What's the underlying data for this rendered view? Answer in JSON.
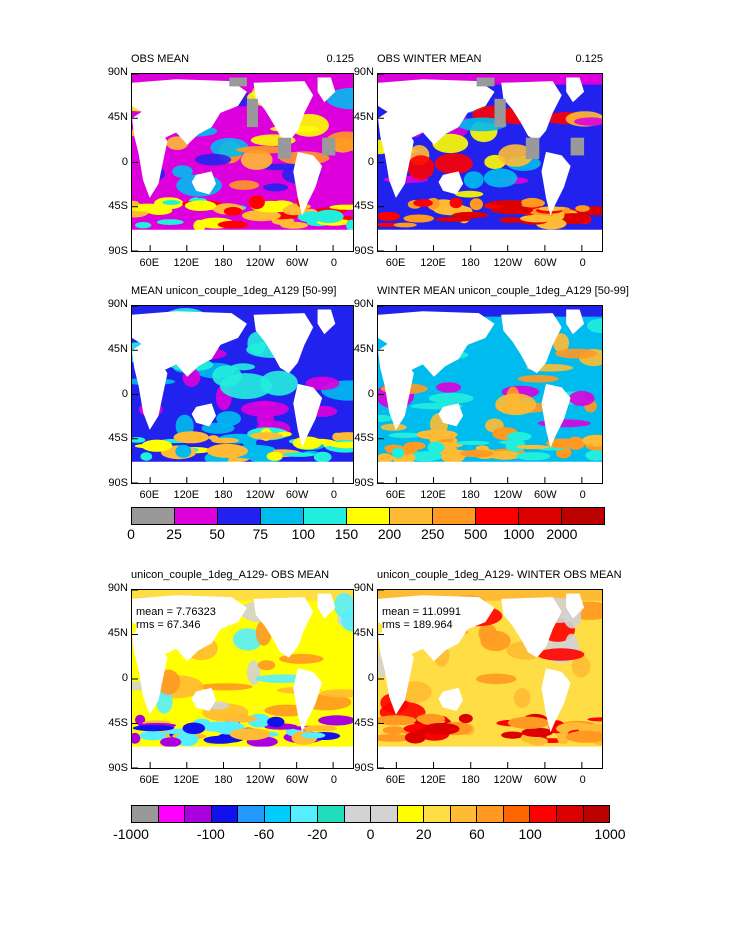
{
  "panels": [
    {
      "id": "p1",
      "title": "OBS MEAN",
      "value": "0.125",
      "field": "obs_mean"
    },
    {
      "id": "p2",
      "title": "OBS WINTER MEAN",
      "value": "0.125",
      "field": "obs_winter"
    },
    {
      "id": "p3",
      "title": "MEAN unicon_couple_1deg_A129 [50-99]",
      "value": "",
      "field": "model_mean"
    },
    {
      "id": "p4",
      "title": "WINTER MEAN unicon_couple_1deg_A129 [50-99]",
      "value": "",
      "field": "model_winter"
    },
    {
      "id": "p5",
      "title": "unicon_couple_1deg_A129- OBS MEAN",
      "value": "",
      "field": "diff_mean",
      "mean": "mean = 7.76323",
      "rms": "rms = 67.346"
    },
    {
      "id": "p6",
      "title": "unicon_couple_1deg_A129- WINTER OBS MEAN",
      "value": "",
      "field": "diff_winter",
      "mean": "mean = 11.0991",
      "rms": "rms = 189.964"
    }
  ],
  "y_ticks": [
    "90N",
    "45N",
    "0",
    "45S",
    "90S"
  ],
  "x_ticks": [
    "60E",
    "120E",
    "180",
    "120W",
    "60W",
    "0"
  ],
  "colorbar1": {
    "colors": [
      "#999999",
      "#dd00dd",
      "#2222ee",
      "#00bbee",
      "#22eedd",
      "#ffff00",
      "#ffbb33",
      "#ff9922",
      "#ff0000",
      "#dd0000",
      "#bb0000"
    ],
    "labels": [
      "0",
      "25",
      "50",
      "75",
      "100",
      "150",
      "200",
      "250",
      "500",
      "1000",
      "2000"
    ]
  },
  "colorbar2": {
    "colors": [
      "#999999",
      "#ff00ff",
      "#aa00dd",
      "#1111ee",
      "#2299ff",
      "#00ccff",
      "#55eeff",
      "#22ddbb",
      "#d3d3d3",
      "#d3d3d3",
      "#ffff00",
      "#ffdd44",
      "#ffbb33",
      "#ff9922",
      "#ff6600",
      "#ff0000",
      "#dd0000",
      "#bb0000"
    ],
    "labels": [
      "-1000",
      "-100",
      "-60",
      "-20",
      "0",
      "20",
      "60",
      "100",
      "1000"
    ]
  }
}
